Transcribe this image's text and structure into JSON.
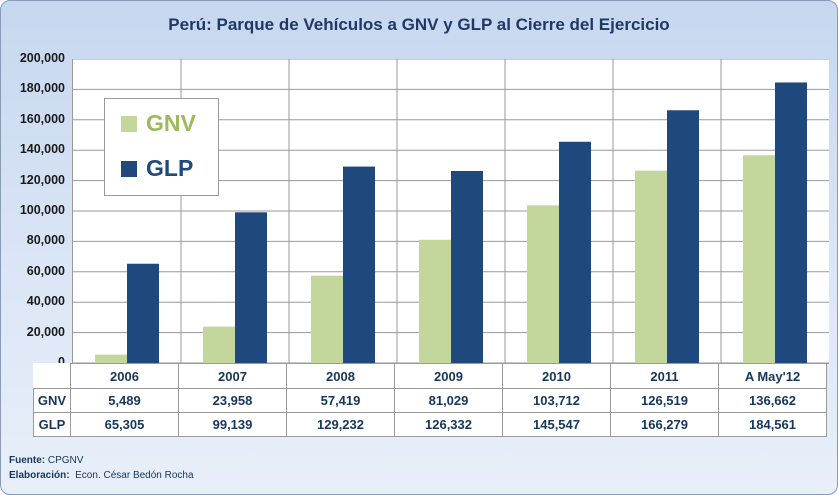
{
  "chart_data": {
    "type": "bar",
    "title": "Perú: Parque de Vehículos a GNV y GLP al Cierre del Ejercicio",
    "categories": [
      "2006",
      "2007",
      "2008",
      "2009",
      "2010",
      "2011",
      "A May'12"
    ],
    "series": [
      {
        "name": "GNV",
        "color": "#c3d69b",
        "values": [
          5489,
          23958,
          57419,
          81029,
          103712,
          126519,
          136662
        ],
        "labels": [
          "5,489",
          "23,958",
          "57,419",
          "81,029",
          "103,712",
          "126,519",
          "136,662"
        ]
      },
      {
        "name": "GLP",
        "color": "#1f497d",
        "values": [
          65305,
          99139,
          129232,
          126332,
          145547,
          166279,
          184561
        ],
        "labels": [
          "65,305",
          "99,139",
          "129,232",
          "126,332",
          "145,547",
          "166,279",
          "184,561"
        ]
      }
    ],
    "ylim": [
      0,
      200000
    ],
    "yticks": [
      "0",
      "20,000",
      "40,000",
      "60,000",
      "80,000",
      "100,000",
      "120,000",
      "140,000",
      "160,000",
      "180,000",
      "200,000"
    ],
    "ystep": 20000,
    "legend_position": "top-left",
    "data_table": true
  },
  "footer": {
    "source_label": "Fuente:",
    "source": "CPGNV",
    "author_label": "Elaboración:",
    "author": "Econ. César Bedón Rocha"
  }
}
